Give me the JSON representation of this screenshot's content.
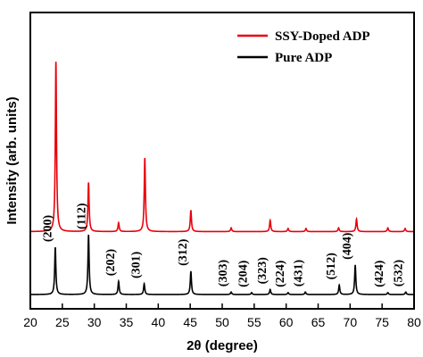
{
  "chart_data": {
    "type": "line",
    "xlabel": "2θ (degree)",
    "ylabel": "Intensity (arb. units)",
    "xlim": [
      20,
      80
    ],
    "xticks": [
      20,
      25,
      30,
      35,
      40,
      45,
      50,
      55,
      60,
      65,
      70,
      75,
      80
    ],
    "legend_position": "top-right",
    "grid": false,
    "series": [
      {
        "name": "SSY-Doped ADP",
        "color": "#e8000b",
        "baseline": 1.0,
        "peaks": [
          {
            "x": 24.0,
            "y": 2.7
          },
          {
            "x": 29.1,
            "y": 0.78
          },
          {
            "x": 33.8,
            "y": 0.14
          },
          {
            "x": 37.9,
            "y": 1.17
          },
          {
            "x": 45.1,
            "y": 0.34
          },
          {
            "x": 51.4,
            "y": 0.06
          },
          {
            "x": 57.5,
            "y": 0.18
          },
          {
            "x": 60.3,
            "y": 0.05
          },
          {
            "x": 63.1,
            "y": 0.05
          },
          {
            "x": 68.2,
            "y": 0.06
          },
          {
            "x": 71.0,
            "y": 0.2
          },
          {
            "x": 75.9,
            "y": 0.06
          },
          {
            "x": 78.6,
            "y": 0.05
          }
        ]
      },
      {
        "name": "Pure ADP",
        "color": "#000000",
        "baseline": 0.0,
        "peaks": [
          {
            "x": 23.9,
            "y": 0.75
          },
          {
            "x": 29.1,
            "y": 0.95
          },
          {
            "x": 33.8,
            "y": 0.21
          },
          {
            "x": 37.8,
            "y": 0.17
          },
          {
            "x": 45.1,
            "y": 0.37
          },
          {
            "x": 51.4,
            "y": 0.04
          },
          {
            "x": 54.6,
            "y": 0.03
          },
          {
            "x": 57.5,
            "y": 0.08
          },
          {
            "x": 60.3,
            "y": 0.03
          },
          {
            "x": 63.0,
            "y": 0.04
          },
          {
            "x": 68.3,
            "y": 0.15
          },
          {
            "x": 70.8,
            "y": 0.47
          },
          {
            "x": 75.9,
            "y": 0.03
          },
          {
            "x": 78.7,
            "y": 0.04
          }
        ]
      }
    ],
    "annotations": [
      {
        "text": "(200)",
        "x": 24.0
      },
      {
        "text": "(112)",
        "x": 29.3
      },
      {
        "text": "(202)",
        "x": 33.8
      },
      {
        "text": "(301)",
        "x": 37.8
      },
      {
        "text": "(312)",
        "x": 45.1
      },
      {
        "text": "(303)",
        "x": 51.4
      },
      {
        "text": "(204)",
        "x": 54.5
      },
      {
        "text": "(323)",
        "x": 57.5
      },
      {
        "text": "(224)",
        "x": 60.3
      },
      {
        "text": "(431)",
        "x": 63.2
      },
      {
        "text": "(512)",
        "x": 68.3
      },
      {
        "text": "(404)",
        "x": 70.8
      },
      {
        "text": "(424)",
        "x": 75.8
      },
      {
        "text": "(532)",
        "x": 78.8
      }
    ]
  }
}
